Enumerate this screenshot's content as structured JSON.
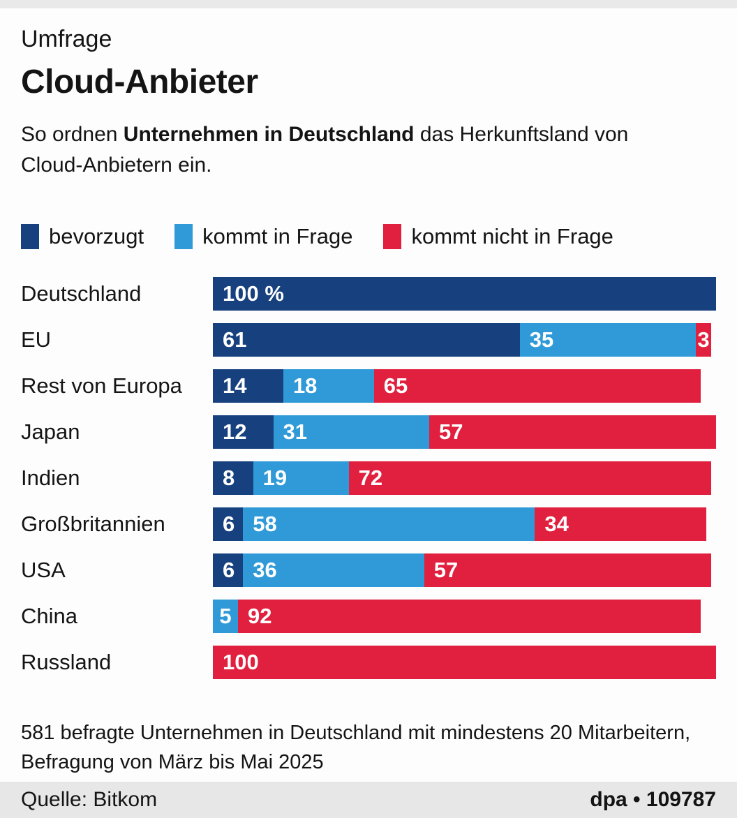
{
  "page": {
    "kicker": "Umfrage",
    "title": "Cloud-Anbieter",
    "subtitle": {
      "pre": "So ordnen ",
      "bold": "Unternehmen in Deutschland",
      "post": " das Herkunftsland von Cloud-Anbietern ein."
    },
    "footnote_line1": "581 befragte Unternehmen in Deutschland mit mindestens 20 Mitarbeitern,",
    "footnote_line2": "Befragung von März bis Mai 2025",
    "source": "Quelle: Bitkom",
    "credit": "dpa • 109787"
  },
  "colors": {
    "series": {
      "bevorzugt": "#17407e",
      "kommt in Frage": "#2f9ad7",
      "kommt nicht in Frage": "#e0203e"
    },
    "strip": "#e9e9e9",
    "footer_band": "#e7e7e7",
    "bar_label_text": "#ffffff"
  },
  "chart_data": {
    "type": "bar",
    "orientation": "horizontal-stacked",
    "unit": "%",
    "xlim": [
      0,
      100
    ],
    "grid": false,
    "legend_position": "top",
    "legend": [
      {
        "label": "bevorzugt",
        "color": "#17407e"
      },
      {
        "label": "kommt in Frage",
        "color": "#2f9ad7"
      },
      {
        "label": "kommt nicht in Frage",
        "color": "#e0203e"
      }
    ],
    "categories": [
      "Deutschland",
      "EU",
      "Rest von Europa",
      "Japan",
      "Indien",
      "Großbritannien",
      "USA",
      "China",
      "Russland"
    ],
    "series": [
      {
        "name": "bevorzugt",
        "values": [
          100,
          61,
          14,
          12,
          8,
          6,
          6,
          null,
          null
        ]
      },
      {
        "name": "kommt in Frage",
        "values": [
          null,
          35,
          18,
          31,
          19,
          58,
          36,
          5,
          null
        ]
      },
      {
        "name": "kommt nicht in Frage",
        "values": [
          null,
          3,
          65,
          57,
          72,
          34,
          57,
          92,
          100
        ]
      }
    ],
    "rows": [
      {
        "label": "Deutschland",
        "segments": [
          {
            "series": "bevorzugt",
            "value": 100,
            "text": "100 %"
          }
        ]
      },
      {
        "label": "EU",
        "segments": [
          {
            "series": "bevorzugt",
            "value": 61,
            "text": "61"
          },
          {
            "series": "kommt in Frage",
            "value": 35,
            "text": "35"
          },
          {
            "series": "kommt nicht in Frage",
            "value": 3,
            "text": "3"
          }
        ]
      },
      {
        "label": "Rest von Europa",
        "segments": [
          {
            "series": "bevorzugt",
            "value": 14,
            "text": "14"
          },
          {
            "series": "kommt in Frage",
            "value": 18,
            "text": "18"
          },
          {
            "series": "kommt nicht in Frage",
            "value": 65,
            "text": "65"
          }
        ]
      },
      {
        "label": "Japan",
        "segments": [
          {
            "series": "bevorzugt",
            "value": 12,
            "text": "12"
          },
          {
            "series": "kommt in Frage",
            "value": 31,
            "text": "31"
          },
          {
            "series": "kommt nicht in Frage",
            "value": 57,
            "text": "57"
          }
        ]
      },
      {
        "label": "Indien",
        "segments": [
          {
            "series": "bevorzugt",
            "value": 8,
            "text": "8"
          },
          {
            "series": "kommt in Frage",
            "value": 19,
            "text": "19"
          },
          {
            "series": "kommt nicht in Frage",
            "value": 72,
            "text": "72"
          }
        ]
      },
      {
        "label": "Großbritannien",
        "segments": [
          {
            "series": "bevorzugt",
            "value": 6,
            "text": "6"
          },
          {
            "series": "kommt in Frage",
            "value": 58,
            "text": "58"
          },
          {
            "series": "kommt nicht in Frage",
            "value": 34,
            "text": "34"
          }
        ]
      },
      {
        "label": "USA",
        "segments": [
          {
            "series": "bevorzugt",
            "value": 6,
            "text": "6"
          },
          {
            "series": "kommt in Frage",
            "value": 36,
            "text": "36"
          },
          {
            "series": "kommt nicht in Frage",
            "value": 57,
            "text": "57"
          }
        ]
      },
      {
        "label": "China",
        "segments": [
          {
            "series": "kommt in Frage",
            "value": 5,
            "text": "5"
          },
          {
            "series": "kommt nicht in Frage",
            "value": 92,
            "text": "92"
          }
        ]
      },
      {
        "label": "Russland",
        "segments": [
          {
            "series": "kommt nicht in Frage",
            "value": 100,
            "text": "100"
          }
        ]
      }
    ]
  }
}
